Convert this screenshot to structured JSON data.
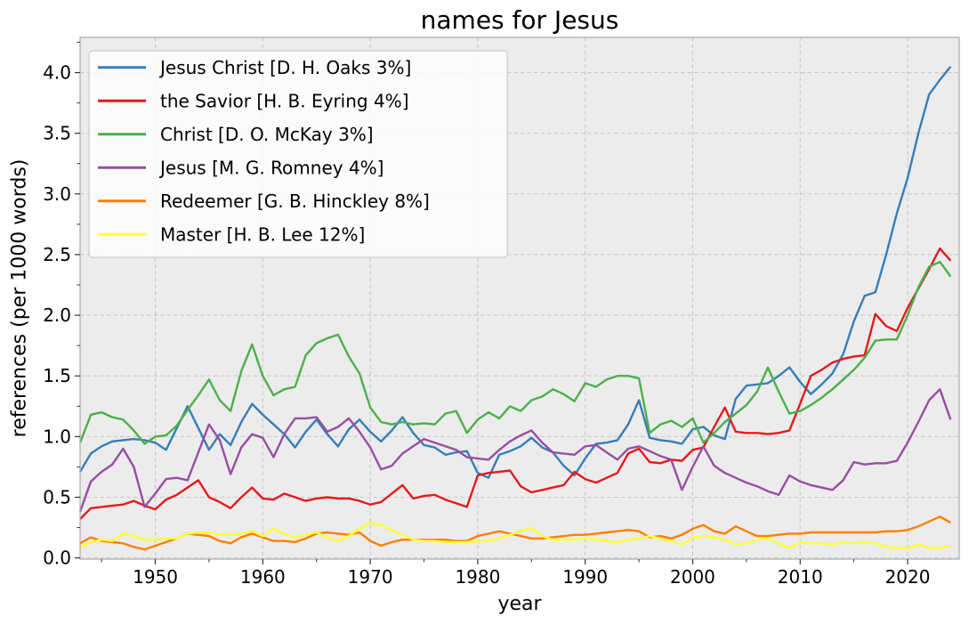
{
  "chart_data": {
    "type": "line",
    "title": "names for Jesus",
    "xlabel": "year",
    "ylabel": "references (per 1000 words)",
    "grid": true,
    "grid_style": "dashed",
    "legend_position": "upper left",
    "plot_bg": "#ececec",
    "grid_color": "#c9c9c9",
    "spine_color": "#b0b0b0",
    "xlim": [
      1943,
      2024.8
    ],
    "ylim": [
      -0.01,
      4.29
    ],
    "xticks": [
      1950,
      1960,
      1970,
      1980,
      1990,
      2000,
      2010,
      2020
    ],
    "xticks_minor": [
      1945,
      1955,
      1965,
      1975,
      1985,
      1995,
      2005,
      2015
    ],
    "yticks": [
      "0.0",
      "0.5",
      "1.0",
      "1.5",
      "2.0",
      "2.5",
      "3.0",
      "3.5",
      "4.0"
    ],
    "x": [
      1943,
      1944,
      1945,
      1946,
      1947,
      1948,
      1949,
      1950,
      1951,
      1952,
      1953,
      1954,
      1955,
      1956,
      1957,
      1958,
      1959,
      1960,
      1961,
      1962,
      1963,
      1964,
      1965,
      1966,
      1967,
      1968,
      1969,
      1970,
      1971,
      1972,
      1973,
      1974,
      1975,
      1976,
      1977,
      1978,
      1979,
      1980,
      1981,
      1982,
      1983,
      1984,
      1985,
      1986,
      1987,
      1988,
      1989,
      1990,
      1991,
      1992,
      1993,
      1994,
      1995,
      1996,
      1997,
      1998,
      1999,
      2000,
      2001,
      2002,
      2003,
      2004,
      2005,
      2006,
      2007,
      2008,
      2009,
      2010,
      2011,
      2012,
      2013,
      2014,
      2015,
      2016,
      2017,
      2018,
      2019,
      2020,
      2021,
      2022,
      2023,
      2024
    ],
    "series": [
      {
        "name": "Jesus Christ [D. H. Oaks 3%]",
        "color": "#377eb8",
        "values": [
          0.71,
          0.86,
          0.92,
          0.96,
          0.97,
          0.98,
          0.97,
          0.95,
          0.89,
          1.07,
          1.25,
          1.07,
          0.89,
          1.02,
          0.93,
          1.12,
          1.27,
          1.18,
          1.1,
          1.02,
          0.91,
          1.04,
          1.14,
          1.02,
          0.92,
          1.06,
          1.14,
          1.04,
          0.96,
          1.05,
          1.16,
          1.03,
          0.93,
          0.91,
          0.85,
          0.87,
          0.88,
          0.7,
          0.66,
          0.85,
          0.88,
          0.92,
          0.99,
          0.91,
          0.87,
          0.76,
          0.68,
          0.82,
          0.94,
          0.95,
          0.97,
          1.1,
          1.3,
          0.99,
          0.97,
          0.96,
          0.94,
          1.06,
          1.08,
          1.01,
          0.98,
          1.31,
          1.42,
          1.43,
          1.44,
          1.5,
          1.57,
          1.45,
          1.35,
          1.43,
          1.52,
          1.68,
          1.95,
          2.16,
          2.19,
          2.5,
          2.84,
          3.13,
          3.5,
          3.82,
          3.94,
          4.05
        ]
      },
      {
        "name": "the Savior [H. B. Eyring 4%]",
        "color": "#e41a1c",
        "values": [
          0.32,
          0.41,
          0.42,
          0.43,
          0.44,
          0.47,
          0.43,
          0.4,
          0.48,
          0.52,
          0.58,
          0.64,
          0.5,
          0.46,
          0.41,
          0.5,
          0.58,
          0.49,
          0.48,
          0.53,
          0.5,
          0.47,
          0.49,
          0.5,
          0.49,
          0.49,
          0.47,
          0.44,
          0.46,
          0.53,
          0.6,
          0.49,
          0.51,
          0.52,
          0.48,
          0.45,
          0.42,
          0.68,
          0.7,
          0.71,
          0.72,
          0.59,
          0.54,
          0.56,
          0.58,
          0.6,
          0.71,
          0.65,
          0.62,
          0.66,
          0.7,
          0.86,
          0.9,
          0.79,
          0.78,
          0.81,
          0.8,
          0.89,
          0.91,
          1.08,
          1.24,
          1.04,
          1.03,
          1.03,
          1.02,
          1.03,
          1.05,
          1.27,
          1.5,
          1.55,
          1.61,
          1.64,
          1.66,
          1.67,
          2.01,
          1.91,
          1.87,
          2.06,
          2.22,
          2.38,
          2.55,
          2.45
        ]
      },
      {
        "name": "Christ [D. O. McKay 3%]",
        "color": "#4daf4a",
        "values": [
          0.95,
          1.18,
          1.2,
          1.16,
          1.14,
          1.05,
          0.94,
          1.0,
          1.01,
          1.09,
          1.22,
          1.34,
          1.47,
          1.3,
          1.21,
          1.54,
          1.76,
          1.5,
          1.34,
          1.39,
          1.41,
          1.67,
          1.77,
          1.81,
          1.84,
          1.66,
          1.52,
          1.24,
          1.12,
          1.1,
          1.12,
          1.1,
          1.11,
          1.1,
          1.19,
          1.21,
          1.03,
          1.14,
          1.2,
          1.15,
          1.25,
          1.21,
          1.3,
          1.33,
          1.39,
          1.35,
          1.29,
          1.44,
          1.41,
          1.47,
          1.5,
          1.5,
          1.48,
          1.03,
          1.1,
          1.13,
          1.08,
          1.15,
          0.95,
          1.03,
          1.12,
          1.19,
          1.26,
          1.37,
          1.57,
          1.37,
          1.19,
          1.21,
          1.26,
          1.32,
          1.39,
          1.47,
          1.55,
          1.65,
          1.79,
          1.8,
          1.8,
          2.0,
          2.23,
          2.4,
          2.44,
          2.32
        ]
      },
      {
        "name": "Jesus [M. G. Romney 4%]",
        "color": "#984ea3",
        "values": [
          0.38,
          0.63,
          0.71,
          0.77,
          0.9,
          0.75,
          0.42,
          0.53,
          0.65,
          0.66,
          0.64,
          0.87,
          1.1,
          0.97,
          0.69,
          0.91,
          1.02,
          0.99,
          0.83,
          1.02,
          1.15,
          1.15,
          1.16,
          1.04,
          1.08,
          1.15,
          1.04,
          0.91,
          0.73,
          0.76,
          0.86,
          0.92,
          0.98,
          0.95,
          0.92,
          0.89,
          0.83,
          0.82,
          0.81,
          0.89,
          0.96,
          1.01,
          1.05,
          0.95,
          0.87,
          0.86,
          0.85,
          0.92,
          0.93,
          0.87,
          0.81,
          0.9,
          0.92,
          0.88,
          0.84,
          0.81,
          0.56,
          0.75,
          0.92,
          0.76,
          0.7,
          0.66,
          0.62,
          0.59,
          0.55,
          0.52,
          0.68,
          0.63,
          0.6,
          0.58,
          0.56,
          0.64,
          0.79,
          0.77,
          0.78,
          0.78,
          0.8,
          0.95,
          1.12,
          1.3,
          1.39,
          1.14
        ]
      },
      {
        "name": "Redeemer [G. B. Hinckley 8%]",
        "color": "#ff7f00",
        "values": [
          0.12,
          0.17,
          0.14,
          0.13,
          0.12,
          0.09,
          0.07,
          0.1,
          0.13,
          0.16,
          0.2,
          0.19,
          0.18,
          0.14,
          0.12,
          0.17,
          0.2,
          0.17,
          0.14,
          0.14,
          0.13,
          0.16,
          0.2,
          0.21,
          0.2,
          0.19,
          0.21,
          0.14,
          0.1,
          0.13,
          0.15,
          0.15,
          0.15,
          0.15,
          0.15,
          0.14,
          0.14,
          0.18,
          0.2,
          0.22,
          0.2,
          0.18,
          0.16,
          0.16,
          0.17,
          0.18,
          0.19,
          0.19,
          0.2,
          0.21,
          0.22,
          0.23,
          0.22,
          0.17,
          0.18,
          0.16,
          0.19,
          0.24,
          0.27,
          0.22,
          0.2,
          0.26,
          0.22,
          0.18,
          0.18,
          0.19,
          0.2,
          0.2,
          0.21,
          0.21,
          0.21,
          0.21,
          0.21,
          0.21,
          0.21,
          0.22,
          0.22,
          0.23,
          0.26,
          0.3,
          0.34,
          0.29
        ]
      },
      {
        "name": "Master [H. B. Lee 12%]",
        "color": "#ffff33",
        "values": [
          0.09,
          0.13,
          0.15,
          0.14,
          0.2,
          0.18,
          0.15,
          0.15,
          0.16,
          0.16,
          0.2,
          0.21,
          0.21,
          0.19,
          0.19,
          0.2,
          0.22,
          0.18,
          0.24,
          0.2,
          0.17,
          0.19,
          0.21,
          0.17,
          0.14,
          0.18,
          0.24,
          0.29,
          0.27,
          0.23,
          0.19,
          0.15,
          0.14,
          0.14,
          0.13,
          0.13,
          0.13,
          0.14,
          0.14,
          0.16,
          0.19,
          0.22,
          0.25,
          0.18,
          0.15,
          0.15,
          0.15,
          0.16,
          0.15,
          0.14,
          0.13,
          0.15,
          0.16,
          0.18,
          0.16,
          0.14,
          0.11,
          0.17,
          0.18,
          0.17,
          0.15,
          0.11,
          0.12,
          0.15,
          0.16,
          0.12,
          0.08,
          0.13,
          0.12,
          0.12,
          0.11,
          0.13,
          0.12,
          0.13,
          0.12,
          0.09,
          0.08,
          0.08,
          0.11,
          0.08,
          0.08,
          0.1
        ]
      }
    ]
  }
}
